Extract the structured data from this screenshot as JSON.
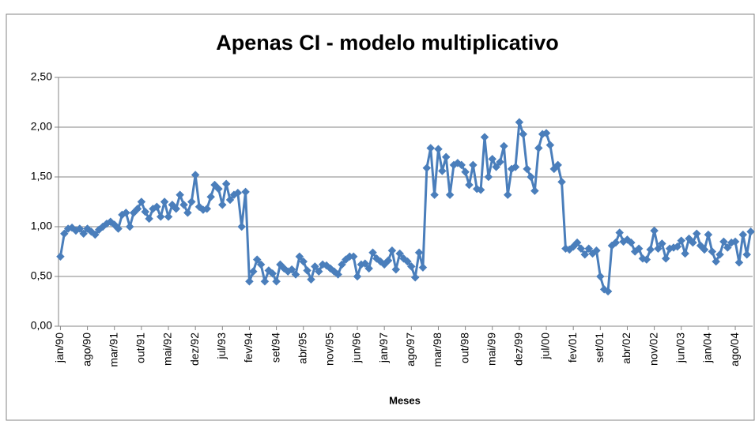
{
  "chart_data": {
    "type": "line",
    "title": "Apenas CI - modelo multiplicativo",
    "x_label": "Meses",
    "color": "#4a7ebb",
    "grid": true,
    "ylim": [
      0,
      2.5
    ],
    "yticks": [
      {
        "value": 0,
        "label": "0,00"
      },
      {
        "value": 0.5,
        "label": "0,50"
      },
      {
        "value": 1,
        "label": "1,00"
      },
      {
        "value": 1.5,
        "label": "1,50"
      },
      {
        "value": 2,
        "label": "2,00"
      },
      {
        "value": 2.5,
        "label": "2,50"
      }
    ],
    "categories": [
      "jan/90",
      null,
      null,
      null,
      null,
      null,
      null,
      "ago/90",
      null,
      null,
      null,
      null,
      null,
      null,
      "mar/91",
      null,
      null,
      null,
      null,
      null,
      null,
      "out/91",
      null,
      null,
      null,
      null,
      null,
      null,
      "mai/92",
      null,
      null,
      null,
      null,
      null,
      null,
      "dez/92",
      null,
      null,
      null,
      null,
      null,
      null,
      "jul/93",
      null,
      null,
      null,
      null,
      null,
      null,
      "fev/94",
      null,
      null,
      null,
      null,
      null,
      null,
      "set/94",
      null,
      null,
      null,
      null,
      null,
      null,
      "abr/95",
      null,
      null,
      null,
      null,
      null,
      null,
      "nov/95",
      null,
      null,
      null,
      null,
      null,
      null,
      "jun/96",
      null,
      null,
      null,
      null,
      null,
      null,
      "jan/97",
      null,
      null,
      null,
      null,
      null,
      null,
      "ago/97",
      null,
      null,
      null,
      null,
      null,
      null,
      "mar/98",
      null,
      null,
      null,
      null,
      null,
      null,
      "out/98",
      null,
      null,
      null,
      null,
      null,
      null,
      "mai/99",
      null,
      null,
      null,
      null,
      null,
      null,
      "dez/99",
      null,
      null,
      null,
      null,
      null,
      null,
      "jul/00",
      null,
      null,
      null,
      null,
      null,
      null,
      "fev/01",
      null,
      null,
      null,
      null,
      null,
      null,
      "set/01",
      null,
      null,
      null,
      null,
      null,
      null,
      "abr/02",
      null,
      null,
      null,
      null,
      null,
      null,
      "nov/02",
      null,
      null,
      null,
      null,
      null,
      null,
      "jun/03",
      null,
      null,
      null,
      null,
      null,
      null,
      "jan/04",
      null,
      null,
      null,
      null,
      null,
      null,
      "ago/04",
      null,
      null,
      null,
      null
    ],
    "values": [
      0.7,
      0.93,
      0.98,
      0.99,
      0.96,
      0.98,
      0.93,
      0.98,
      0.95,
      0.92,
      0.97,
      1.0,
      1.03,
      1.05,
      1.02,
      0.98,
      1.12,
      1.14,
      1.0,
      1.14,
      1.18,
      1.25,
      1.15,
      1.08,
      1.18,
      1.2,
      1.1,
      1.25,
      1.1,
      1.22,
      1.18,
      1.32,
      1.22,
      1.14,
      1.25,
      1.52,
      1.2,
      1.17,
      1.18,
      1.3,
      1.42,
      1.38,
      1.22,
      1.43,
      1.27,
      1.32,
      1.34,
      1.0,
      1.35,
      0.45,
      0.55,
      0.67,
      0.62,
      0.45,
      0.56,
      0.53,
      0.45,
      0.62,
      0.58,
      0.55,
      0.57,
      0.52,
      0.7,
      0.65,
      0.56,
      0.47,
      0.6,
      0.55,
      0.62,
      0.61,
      0.58,
      0.55,
      0.52,
      0.62,
      0.67,
      0.7,
      0.7,
      0.5,
      0.62,
      0.63,
      0.58,
      0.74,
      0.68,
      0.65,
      0.62,
      0.66,
      0.76,
      0.57,
      0.73,
      0.68,
      0.65,
      0.6,
      0.49,
      0.74,
      0.59,
      1.59,
      1.79,
      1.32,
      1.78,
      1.56,
      1.7,
      1.32,
      1.62,
      1.64,
      1.62,
      1.55,
      1.42,
      1.62,
      1.38,
      1.37,
      1.9,
      1.5,
      1.68,
      1.6,
      1.65,
      1.81,
      1.32,
      1.58,
      1.6,
      2.05,
      1.93,
      1.58,
      1.5,
      1.36,
      1.79,
      1.93,
      1.94,
      1.82,
      1.58,
      1.62,
      1.45,
      0.78,
      0.77,
      0.8,
      0.84,
      0.78,
      0.72,
      0.78,
      0.73,
      0.76,
      0.5,
      0.37,
      0.35,
      0.81,
      0.84,
      0.94,
      0.85,
      0.87,
      0.84,
      0.75,
      0.78,
      0.68,
      0.67,
      0.77,
      0.96,
      0.78,
      0.83,
      0.68,
      0.78,
      0.79,
      0.8,
      0.86,
      0.73,
      0.88,
      0.84,
      0.93,
      0.81,
      0.77,
      0.92,
      0.75,
      0.65,
      0.72,
      0.85,
      0.79,
      0.84,
      0.85,
      0.64,
      0.92,
      0.72,
      0.95
    ]
  }
}
